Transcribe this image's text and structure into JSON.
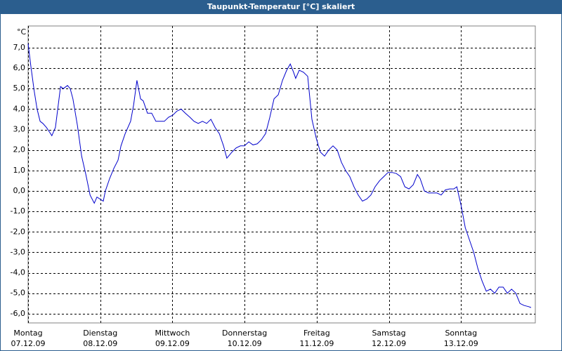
{
  "chart_data": {
    "type": "line",
    "title": "Taupunkt-Temperatur [°C] skaliert",
    "y_unit": "°C",
    "x": [
      0,
      0.9,
      2.0,
      3.0,
      4.0,
      4.9,
      6.1,
      7.0,
      7.9,
      9.1,
      10.8,
      11.7,
      13.1,
      14.0,
      14.9,
      16.4,
      17.8,
      19.2,
      20.6,
      22.0,
      22.9,
      25.0,
      25.7,
      27.1,
      28.5,
      29.9,
      30.9,
      32.3,
      34.1,
      35.1,
      36.2,
      37.4,
      38.3,
      39.7,
      41.1,
      42.5,
      43.9,
      45.3,
      46.7,
      48.1,
      49.5,
      50.9,
      52.3,
      53.8,
      55.2,
      56.6,
      58.0,
      59.4,
      60.8,
      62.2,
      63.6,
      65.0,
      66.1,
      67.8,
      69.2,
      70.6,
      72.0,
      73.4,
      74.8,
      76.2,
      77.6,
      79.0,
      80.4,
      81.8,
      83.2,
      84.6,
      86.0,
      87.2,
      88.3,
      89.0,
      90.2,
      91.6,
      93.0,
      94.4,
      95.8,
      97.2,
      98.6,
      100.0,
      101.4,
      102.8,
      104.2,
      105.6,
      107.0,
      108.4,
      109.8,
      111.2,
      112.6,
      114.0,
      115.4,
      116.9,
      118.3,
      119.7,
      121.1,
      122.5,
      123.9,
      125.3,
      126.7,
      128.1,
      129.5,
      130.4,
      131.8,
      133.2,
      134.6,
      136.0,
      137.4,
      138.8,
      140.2,
      141.6,
      142.6,
      144.0,
      145.4,
      146.8,
      148.2,
      149.6,
      151.0,
      152.4,
      153.8,
      155.2,
      156.6,
      158.0,
      159.4,
      160.8,
      162.2,
      163.6,
      165.0,
      166.4,
      167.3
    ],
    "series": [
      {
        "name": "Taupunkt",
        "color": "#0000cc",
        "values": [
          7.2,
          6.1,
          4.9,
          4.0,
          3.4,
          3.3,
          3.1,
          2.9,
          2.7,
          3.1,
          5.1,
          5.0,
          5.15,
          5.0,
          4.5,
          3.2,
          1.7,
          0.8,
          -0.2,
          -0.6,
          -0.3,
          -0.5,
          0.0,
          0.6,
          1.1,
          1.5,
          2.2,
          2.8,
          3.4,
          4.2,
          5.4,
          4.5,
          4.4,
          3.8,
          3.8,
          3.4,
          3.4,
          3.4,
          3.6,
          3.7,
          3.9,
          4.0,
          3.8,
          3.6,
          3.4,
          3.3,
          3.4,
          3.3,
          3.5,
          3.1,
          2.8,
          2.2,
          1.6,
          1.9,
          2.1,
          2.2,
          2.2,
          2.4,
          2.25,
          2.3,
          2.5,
          2.8,
          3.6,
          4.5,
          4.7,
          5.4,
          5.9,
          6.2,
          5.8,
          5.5,
          5.9,
          5.8,
          5.6,
          3.5,
          2.6,
          1.9,
          1.7,
          2.0,
          2.2,
          2.0,
          1.4,
          1.0,
          0.7,
          0.2,
          -0.2,
          -0.5,
          -0.4,
          -0.2,
          0.2,
          0.5,
          0.7,
          0.9,
          0.9,
          0.85,
          0.7,
          0.2,
          0.1,
          0.3,
          0.8,
          0.6,
          0.0,
          -0.1,
          -0.1,
          -0.1,
          -0.2,
          0.05,
          0.1,
          0.1,
          0.2,
          -0.7,
          -1.8,
          -2.4,
          -3.0,
          -3.8,
          -4.4,
          -4.9,
          -4.8,
          -5.0,
          -4.7,
          -4.7,
          -5.0,
          -4.8,
          -5.0,
          -5.5,
          -5.6,
          -5.65,
          -5.7
        ]
      }
    ],
    "xlim": [
      0,
      168.7
    ],
    "xticks": [
      {
        "value": 0,
        "label": "Montag"
      },
      {
        "value": 24,
        "label": "Dienstag"
      },
      {
        "value": 48,
        "label": "Mittwoch"
      },
      {
        "value": 72,
        "label": "Donnerstag"
      },
      {
        "value": 96,
        "label": "Freitag"
      },
      {
        "value": 120,
        "label": "Samstag"
      },
      {
        "value": 144,
        "label": "Sonntag"
      }
    ],
    "xtick_dates": [
      "07.12.09",
      "08.12.09",
      "09.12.09",
      "10.12.09",
      "11.12.09",
      "12.12.09",
      "13.12.09"
    ],
    "ylim": [
      -6.45,
      8.06
    ],
    "yticks": [
      {
        "value": -6,
        "label": "-6,0"
      },
      {
        "value": -5,
        "label": "-5,0"
      },
      {
        "value": -4,
        "label": "-4,0"
      },
      {
        "value": -3,
        "label": "-3,0"
      },
      {
        "value": -2,
        "label": "-2,0"
      },
      {
        "value": -1,
        "label": "-1,0"
      },
      {
        "value": 0,
        "label": "0,0"
      },
      {
        "value": 1,
        "label": "1,0"
      },
      {
        "value": 2,
        "label": "2,0"
      },
      {
        "value": 3,
        "label": "3,0"
      },
      {
        "value": 4,
        "label": "4,0"
      },
      {
        "value": 5,
        "label": "5,0"
      },
      {
        "value": 6,
        "label": "6,0"
      },
      {
        "value": 7,
        "label": "7,0"
      }
    ],
    "grid": true
  }
}
